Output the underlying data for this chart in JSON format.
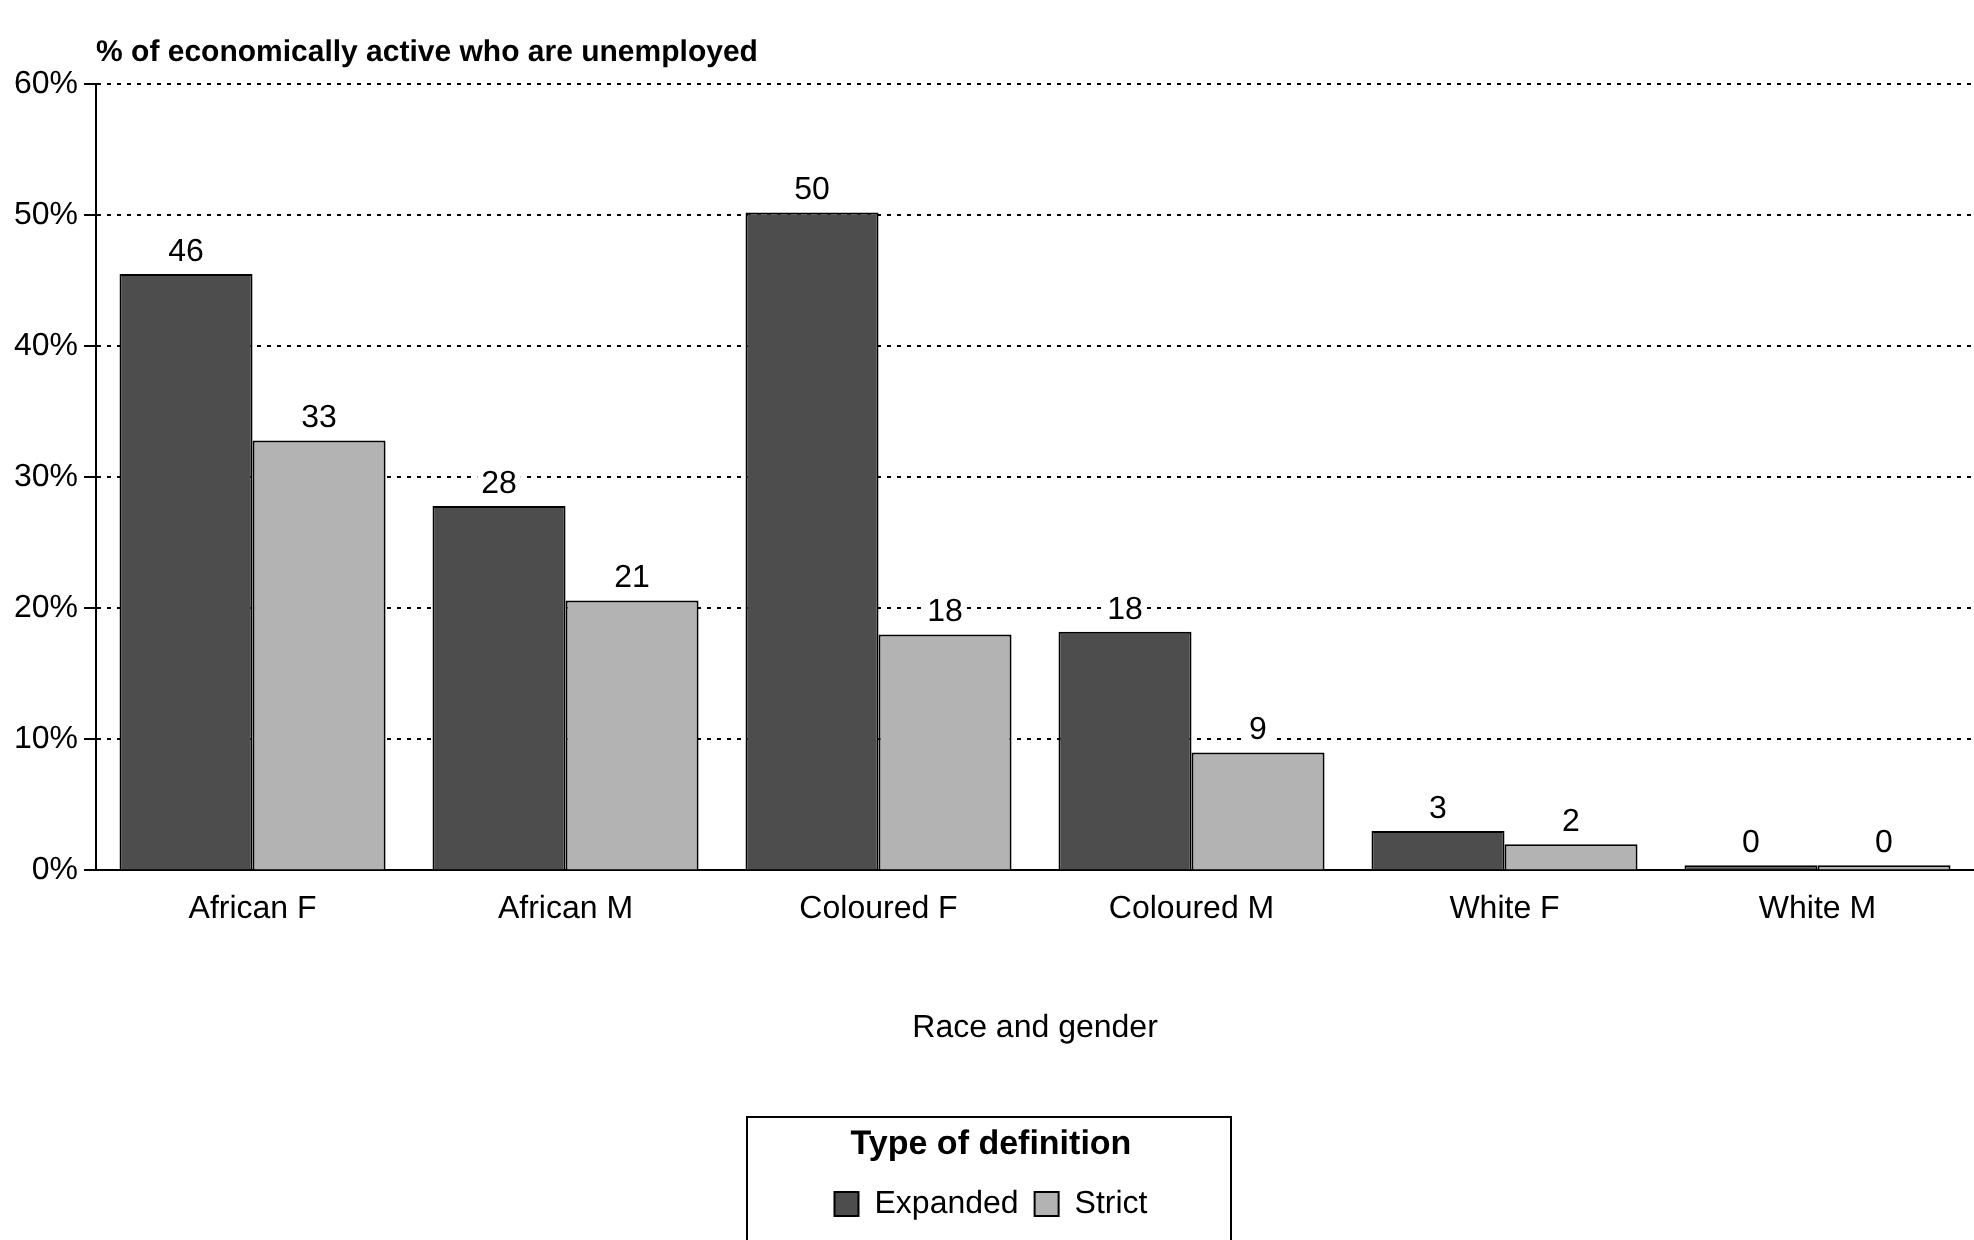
{
  "chart_data": {
    "type": "bar",
    "title": "% of economically active who are unemployed",
    "xlabel": "Race and gender",
    "legend_title": "Type of definition",
    "categories": [
      "African F",
      "African M",
      "Coloured F",
      "Coloured M",
      "White F",
      "White M"
    ],
    "series": [
      {
        "name": "Expanded",
        "color": "#4d4d4d",
        "values": [
          45.5,
          27.8,
          50.2,
          18.2,
          3,
          0.4
        ],
        "value_labels": [
          "46",
          "28",
          "50",
          "18",
          "3",
          "0"
        ]
      },
      {
        "name": "Strict",
        "color": "#b3b3b3",
        "values": [
          32.8,
          20.6,
          18,
          9,
          2,
          0.4
        ],
        "value_labels": [
          "33",
          "21",
          "18",
          "9",
          "2",
          "0"
        ]
      }
    ],
    "ylim": [
      0,
      60
    ],
    "yticks": [
      {
        "value": 0,
        "label": "0%"
      },
      {
        "value": 10,
        "label": "10%"
      },
      {
        "value": 20,
        "label": "20%"
      },
      {
        "value": 30,
        "label": "30%"
      },
      {
        "value": 40,
        "label": "40%"
      },
      {
        "value": 50,
        "label": "50%"
      },
      {
        "value": 60,
        "label": "60%"
      }
    ],
    "grid": "y",
    "legend": "bottom"
  }
}
